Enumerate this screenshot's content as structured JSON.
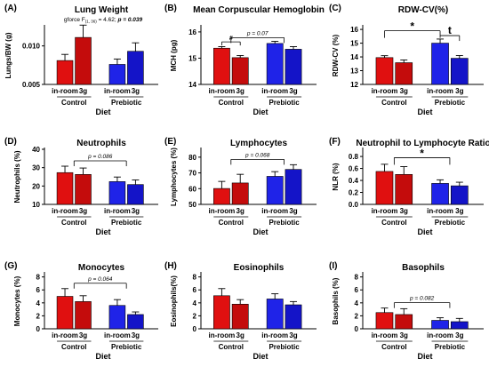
{
  "figure": {
    "colors": {
      "control_inroom": "#e01010",
      "control_3g": "#c40c0c",
      "prebiotic_inroom": "#1f23e8",
      "prebiotic_3g": "#1414c8",
      "error": "#000000"
    },
    "common": {
      "subgroups": [
        "in-room",
        "3g"
      ],
      "groups": [
        "Control",
        "Prebiotic"
      ],
      "xlabel": "Diet"
    }
  },
  "chart_data": [
    {
      "panel": "(A)",
      "type": "bar",
      "title": "Lung Weight",
      "ylabel": "Lungs/BW (g)",
      "ylim": [
        0.005,
        0.0125
      ],
      "yticks": [
        "0.005",
        "0.010"
      ],
      "ytick_values": [
        0.005,
        0.01
      ],
      "categories": [
        "Control in-room",
        "Control 3g",
        "Prebiotic in-room",
        "Prebiotic 3g"
      ],
      "values": [
        0.0081,
        0.0111,
        0.0076,
        0.0093
      ],
      "errors": [
        0.0008,
        0.0016,
        0.0007,
        0.0011
      ],
      "annotation": "gforce F",
      "annotation_sub": "(1, 36)",
      "annotation_rest": " = 4.62; ",
      "annotation_p": "p = 0.039"
    },
    {
      "panel": "(B)",
      "type": "bar",
      "title": "Mean Corpuscular Hemoglobin",
      "ylabel": "MCH (pg)",
      "ylim": [
        14,
        16.2
      ],
      "yticks": [
        "14",
        "15",
        "16"
      ],
      "ytick_values": [
        14,
        15,
        16
      ],
      "categories": [
        "Control in-room",
        "Control 3g",
        "Prebiotic in-room",
        "Prebiotic 3g"
      ],
      "values": [
        15.38,
        15.02,
        15.56,
        15.34
      ],
      "errors": [
        0.06,
        0.08,
        0.08,
        0.1
      ],
      "sig_label": "#",
      "p_label": "p = 0.07"
    },
    {
      "panel": "(C)",
      "type": "bar",
      "title": "RDW-CV(%)",
      "ylabel": "RDW-CV (%)",
      "ylim": [
        12,
        16.2
      ],
      "yticks": [
        "12",
        "13",
        "14",
        "15",
        "16"
      ],
      "ytick_values": [
        12,
        13,
        14,
        15,
        16
      ],
      "categories": [
        "Control in-room",
        "Control 3g",
        "Prebiotic in-room",
        "Prebiotic 3g"
      ],
      "values": [
        13.95,
        13.58,
        15.0,
        13.9
      ],
      "errors": [
        0.14,
        0.2,
        0.3,
        0.2
      ],
      "sig_label": "*",
      "sig_label2": "t"
    },
    {
      "panel": "(D)",
      "type": "bar",
      "title": "Neutrophils",
      "ylabel": "Neutrophils (%)",
      "ylim": [
        10,
        40
      ],
      "yticks": [
        "10",
        "20",
        "30",
        "40"
      ],
      "ytick_values": [
        10,
        20,
        30,
        40
      ],
      "categories": [
        "Control in-room",
        "Control 3g",
        "Prebiotic in-room",
        "Prebiotic 3g"
      ],
      "values": [
        27.3,
        26.3,
        22.4,
        20.8
      ],
      "errors": [
        3.5,
        3.5,
        2.5,
        2.5
      ],
      "p_label": "p = 0.086"
    },
    {
      "panel": "(E)",
      "type": "bar",
      "title": "Lymphocytes",
      "ylabel": "Lymphocytes (%)",
      "ylim": [
        50,
        85
      ],
      "yticks": [
        "50",
        "60",
        "70",
        "80"
      ],
      "ytick_values": [
        50,
        60,
        70,
        80
      ],
      "categories": [
        "Control in-room",
        "Control 3g",
        "Prebiotic in-room",
        "Prebiotic 3g"
      ],
      "values": [
        60.1,
        63.6,
        67.8,
        72.2
      ],
      "errors": [
        4.5,
        5.5,
        3.0,
        3.0
      ],
      "p_label": "p = 0.068"
    },
    {
      "panel": "(F)",
      "type": "bar",
      "title": "Neutrophil to Lymphocyte Ratio",
      "ylabel": "NLR (%)",
      "ylim": [
        0.0,
        0.92
      ],
      "yticks": [
        "0.0",
        "0.2",
        "0.4",
        "0.6",
        "0.8"
      ],
      "ytick_values": [
        0,
        0.2,
        0.4,
        0.6,
        0.8
      ],
      "categories": [
        "Control in-room",
        "Control 3g",
        "Prebiotic in-room",
        "Prebiotic 3g"
      ],
      "values": [
        0.55,
        0.5,
        0.35,
        0.31
      ],
      "errors": [
        0.12,
        0.13,
        0.06,
        0.06
      ],
      "sig_label": "*"
    },
    {
      "panel": "(G)",
      "type": "bar",
      "title": "Monocytes",
      "ylabel": "Monocytes (%)",
      "ylim": [
        0,
        8.5
      ],
      "yticks": [
        "0",
        "2",
        "4",
        "6",
        "8"
      ],
      "ytick_values": [
        0,
        2,
        4,
        6,
        8
      ],
      "categories": [
        "Control in-room",
        "Control 3g",
        "Prebiotic in-room",
        "Prebiotic 3g"
      ],
      "values": [
        5.0,
        4.2,
        3.6,
        2.2
      ],
      "errors": [
        1.2,
        0.9,
        0.9,
        0.4
      ],
      "p_label": "p = 0.064"
    },
    {
      "panel": "(H)",
      "type": "bar",
      "title": "Eosinophils",
      "ylabel": "Eosinophils(%)",
      "ylim": [
        0,
        8.5
      ],
      "yticks": [
        "0",
        "2",
        "4",
        "6",
        "8"
      ],
      "ytick_values": [
        0,
        2,
        4,
        6,
        8
      ],
      "categories": [
        "Control in-room",
        "Control 3g",
        "Prebiotic in-room",
        "Prebiotic 3g"
      ],
      "values": [
        5.1,
        3.8,
        4.6,
        3.7
      ],
      "errors": [
        1.1,
        0.7,
        0.8,
        0.5
      ],
      "p_label": ""
    },
    {
      "panel": "(I)",
      "type": "bar",
      "title": "Basophils",
      "ylabel": "Basophils (%)",
      "ylim": [
        0,
        8.5
      ],
      "yticks": [
        "0",
        "2",
        "4",
        "6",
        "8"
      ],
      "ytick_values": [
        0,
        2,
        4,
        6,
        8
      ],
      "categories": [
        "Control in-room",
        "Control 3g",
        "Prebiotic in-room",
        "Prebiotic 3g"
      ],
      "values": [
        2.5,
        2.2,
        1.3,
        1.1
      ],
      "errors": [
        0.7,
        0.9,
        0.4,
        0.5
      ],
      "p_label": "p = 0.082"
    }
  ]
}
